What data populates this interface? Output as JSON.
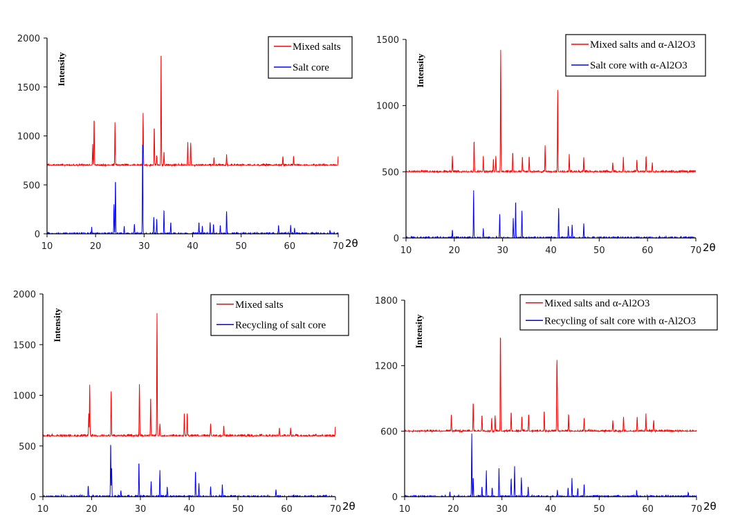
{
  "chart_data": [
    {
      "type": "line",
      "title": "",
      "xlabel": "2θ",
      "ylabel": "Intensity",
      "xlim": [
        10,
        70
      ],
      "ylim": [
        0,
        2000
      ],
      "xticks": [
        "10",
        "20",
        "30",
        "40",
        "50",
        "60",
        "70"
      ],
      "yticks": [
        "0",
        "500",
        "1000",
        "1500",
        "2000"
      ],
      "legend_position": "top-right",
      "series": [
        {
          "name": "Mixed salts",
          "color": "#ff0000",
          "baseline": 700,
          "peaks": [
            [
              19.4,
              920
            ],
            [
              19.7,
              1190
            ],
            [
              24.0,
              1140
            ],
            [
              29.8,
              1220
            ],
            [
              32.1,
              1100
            ],
            [
              32.6,
              800
            ],
            [
              33.5,
              1910
            ],
            [
              34.1,
              840
            ],
            [
              39.0,
              930
            ],
            [
              39.6,
              930
            ],
            [
              44.4,
              780
            ],
            [
              47.0,
              800
            ],
            [
              58.6,
              790
            ],
            [
              60.8,
              790
            ],
            [
              70.0,
              790
            ]
          ]
        },
        {
          "name": "Salt core",
          "color": "#0000ff",
          "baseline": 0,
          "peaks": [
            [
              19.2,
              60
            ],
            [
              23.8,
              300
            ],
            [
              24.1,
              570
            ],
            [
              25.9,
              70
            ],
            [
              28.0,
              100
            ],
            [
              29.7,
              980
            ],
            [
              32.0,
              170
            ],
            [
              32.6,
              140
            ],
            [
              34.1,
              250
            ],
            [
              35.5,
              120
            ],
            [
              41.3,
              120
            ],
            [
              42.0,
              80
            ],
            [
              43.6,
              110
            ],
            [
              44.3,
              100
            ],
            [
              45.7,
              90
            ],
            [
              47.0,
              230
            ],
            [
              57.7,
              90
            ],
            [
              60.2,
              90
            ],
            [
              61.0,
              60
            ],
            [
              68.3,
              40
            ]
          ]
        }
      ]
    },
    {
      "type": "line",
      "title": "",
      "xlabel": "2θ",
      "ylabel": "Intensity",
      "xlim": [
        10,
        70
      ],
      "ylim": [
        0,
        1500
      ],
      "xticks": [
        "10",
        "20",
        "30",
        "40",
        "50",
        "60",
        "70"
      ],
      "yticks": [
        "0",
        "500",
        "1000",
        "1500"
      ],
      "legend_position": "top-right",
      "series": [
        {
          "name": "Mixed salts and α-Al2O3",
          "color": "#ff0000",
          "baseline": 500,
          "peaks": [
            [
              19.6,
              620
            ],
            [
              24.1,
              740
            ],
            [
              26.0,
              610
            ],
            [
              28.1,
              600
            ],
            [
              28.6,
              620
            ],
            [
              29.6,
              1420
            ],
            [
              32.1,
              650
            ],
            [
              34.1,
              620
            ],
            [
              35.5,
              620
            ],
            [
              38.8,
              690
            ],
            [
              41.4,
              1110
            ],
            [
              43.8,
              630
            ],
            [
              46.8,
              600
            ],
            [
              52.8,
              570
            ],
            [
              55.0,
              600
            ],
            [
              57.8,
              590
            ],
            [
              59.7,
              620
            ],
            [
              61.0,
              570
            ]
          ]
        },
        {
          "name": "Salt core with α-Al2O3",
          "color": "#0000ff",
          "baseline": 0,
          "peaks": [
            [
              19.6,
              60
            ],
            [
              24.0,
              360
            ],
            [
              26.0,
              70
            ],
            [
              29.4,
              180
            ],
            [
              32.2,
              150
            ],
            [
              32.7,
              280
            ],
            [
              34.0,
              200
            ],
            [
              41.6,
              225
            ],
            [
              43.6,
              90
            ],
            [
              44.4,
              100
            ],
            [
              46.8,
              110
            ]
          ]
        }
      ]
    },
    {
      "type": "line",
      "title": "",
      "xlabel": "2θ",
      "ylabel": "Intensity",
      "xlim": [
        10,
        70
      ],
      "ylim": [
        0,
        2000
      ],
      "xticks": [
        "10",
        "20",
        "30",
        "40",
        "50",
        "60",
        "70"
      ],
      "yticks": [
        "0",
        "500",
        "1000",
        "1500",
        "2000"
      ],
      "legend_position": "top-right",
      "series": [
        {
          "name": "Mixed salts",
          "color": "#ff0000",
          "baseline": 600,
          "peaks": [
            [
              19.4,
              820
            ],
            [
              19.6,
              1090
            ],
            [
              24.0,
              1040
            ],
            [
              29.8,
              1110
            ],
            [
              32.1,
              990
            ],
            [
              33.4,
              1810
            ],
            [
              34.0,
              720
            ],
            [
              39.0,
              820
            ],
            [
              39.6,
              820
            ],
            [
              44.4,
              720
            ],
            [
              47.1,
              700
            ],
            [
              58.5,
              680
            ],
            [
              60.8,
              680
            ],
            [
              70.0,
              690
            ]
          ]
        },
        {
          "name": "Recycling of salt core",
          "color": "#0000ff",
          "baseline": 0,
          "peaks": [
            [
              19.3,
              110
            ],
            [
              23.9,
              540
            ],
            [
              24.1,
              300
            ],
            [
              26.0,
              60
            ],
            [
              29.7,
              350
            ],
            [
              32.2,
              150
            ],
            [
              34.0,
              250
            ],
            [
              35.5,
              100
            ],
            [
              41.3,
              260
            ],
            [
              42.0,
              120
            ],
            [
              44.4,
              100
            ],
            [
              46.8,
              120
            ],
            [
              57.8,
              70
            ]
          ]
        }
      ]
    },
    {
      "type": "line",
      "title": "",
      "xlabel": "2θ",
      "ylabel": "Intensity",
      "xlim": [
        10,
        70
      ],
      "ylim": [
        0,
        1800
      ],
      "xticks": [
        "10",
        "20",
        "30",
        "40",
        "50",
        "60",
        "70"
      ],
      "yticks": [
        "0",
        "600",
        "1200",
        "1800"
      ],
      "legend_position": "top-right",
      "series": [
        {
          "name": "Mixed salts and α-Al2O3",
          "color": "#ff0000",
          "baseline": 600,
          "peaks": [
            [
              19.6,
              750
            ],
            [
              24.1,
              870
            ],
            [
              25.9,
              750
            ],
            [
              27.9,
              720
            ],
            [
              28.6,
              730
            ],
            [
              29.7,
              1520
            ],
            [
              31.9,
              780
            ],
            [
              34.1,
              740
            ],
            [
              35.5,
              760
            ],
            [
              38.7,
              790
            ],
            [
              41.3,
              1220
            ],
            [
              41.4,
              900
            ],
            [
              43.7,
              760
            ],
            [
              46.9,
              720
            ],
            [
              52.8,
              700
            ],
            [
              55.0,
              730
            ],
            [
              57.8,
              730
            ],
            [
              59.6,
              750
            ],
            [
              61.2,
              700
            ]
          ]
        },
        {
          "name": "Recycling of salt core with α-Al2O3",
          "color": "#0000ff",
          "baseline": 0,
          "peaks": [
            [
              19.3,
              40
            ],
            [
              23.8,
              580
            ],
            [
              24.1,
              180
            ],
            [
              25.9,
              90
            ],
            [
              26.8,
              240
            ],
            [
              28.0,
              80
            ],
            [
              29.4,
              260
            ],
            [
              31.9,
              170
            ],
            [
              32.6,
              280
            ],
            [
              34.0,
              170
            ],
            [
              35.4,
              90
            ],
            [
              41.4,
              60
            ],
            [
              43.6,
              80
            ],
            [
              44.4,
              170
            ],
            [
              45.6,
              80
            ],
            [
              46.9,
              120
            ],
            [
              57.7,
              60
            ],
            [
              68.3,
              40
            ]
          ]
        }
      ]
    }
  ]
}
